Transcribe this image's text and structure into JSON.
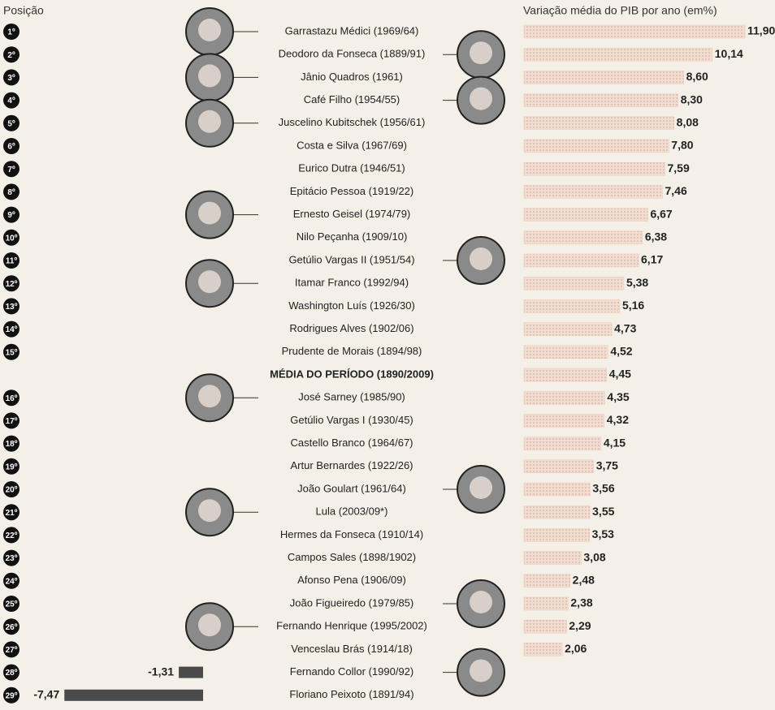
{
  "chart_data": {
    "type": "bar",
    "orientation": "horizontal",
    "rank_header": "Posição",
    "value_header": "Variação média do PIB por ano (em%)",
    "ranks": [
      "1º",
      "2º",
      "3º",
      "4º",
      "5º",
      "6º",
      "7º",
      "8º",
      "9º",
      "10º",
      "11º",
      "12º",
      "13º",
      "14º",
      "15º",
      null,
      "16º",
      "17º",
      "18º",
      "19º",
      "20º",
      "21º",
      "22º",
      "23º",
      "24º",
      "25º",
      "26º",
      "27º",
      "28º",
      "29º"
    ],
    "categories": [
      "Garrastazu Médici (1969/64)",
      "Deodoro da Fonseca (1889/91)",
      "Jânio Quadros (1961)",
      "Café Filho (1954/55)",
      "Juscelino Kubitschek (1956/61)",
      "Costa e Silva (1967/69)",
      "Eurico Dutra (1946/51)",
      "Epitácio Pessoa (1919/22)",
      "Ernesto Geisel (1974/79)",
      "Nilo Peçanha (1909/10)",
      "Getúlio Vargas II (1951/54)",
      "Itamar Franco (1992/94)",
      "Washington Luís (1926/30)",
      "Rodrigues Alves (1902/06)",
      "Prudente de Morais (1894/98)",
      "MÉDIA DO PERÍODO (1890/2009)",
      "José Sarney (1985/90)",
      "Getúlio Vargas I (1930/45)",
      "Castello Branco (1964/67)",
      "Artur Bernardes (1922/26)",
      "João Goulart (1961/64)",
      "Lula (2003/09*)",
      "Hermes da Fonseca (1910/14)",
      "Campos Sales (1898/1902)",
      "Afonso Pena (1906/09)",
      "João Figueiredo (1979/85)",
      "Fernando Henrique (1995/2002)",
      "Venceslau Brás (1914/18)",
      "Fernando Collor (1990/92)",
      "Floriano Peixoto (1891/94)"
    ],
    "values": [
      11.9,
      10.14,
      8.6,
      8.3,
      8.08,
      7.8,
      7.59,
      7.46,
      6.67,
      6.38,
      6.17,
      5.38,
      5.16,
      4.73,
      4.52,
      4.45,
      4.35,
      4.32,
      4.15,
      3.75,
      3.56,
      3.55,
      3.53,
      3.08,
      2.48,
      2.38,
      2.29,
      2.06,
      -1.31,
      -7.47
    ],
    "value_labels": [
      "11,90",
      "10,14",
      "8,60",
      "8,30",
      "8,08",
      "7,80",
      "7,59",
      "7,46",
      "6,67",
      "6,38",
      "6,17",
      "5,38",
      "5,16",
      "4,73",
      "4,52",
      "4,45",
      "4,35",
      "4,32",
      "4,15",
      "3,75",
      "3,56",
      "3,55",
      "3,53",
      "3,08",
      "2,48",
      "2,38",
      "2,29",
      "2,06",
      "-1,31",
      "-7,47"
    ],
    "color": "#ecc9b8",
    "negative_color": "#4a4a4a"
  }
}
